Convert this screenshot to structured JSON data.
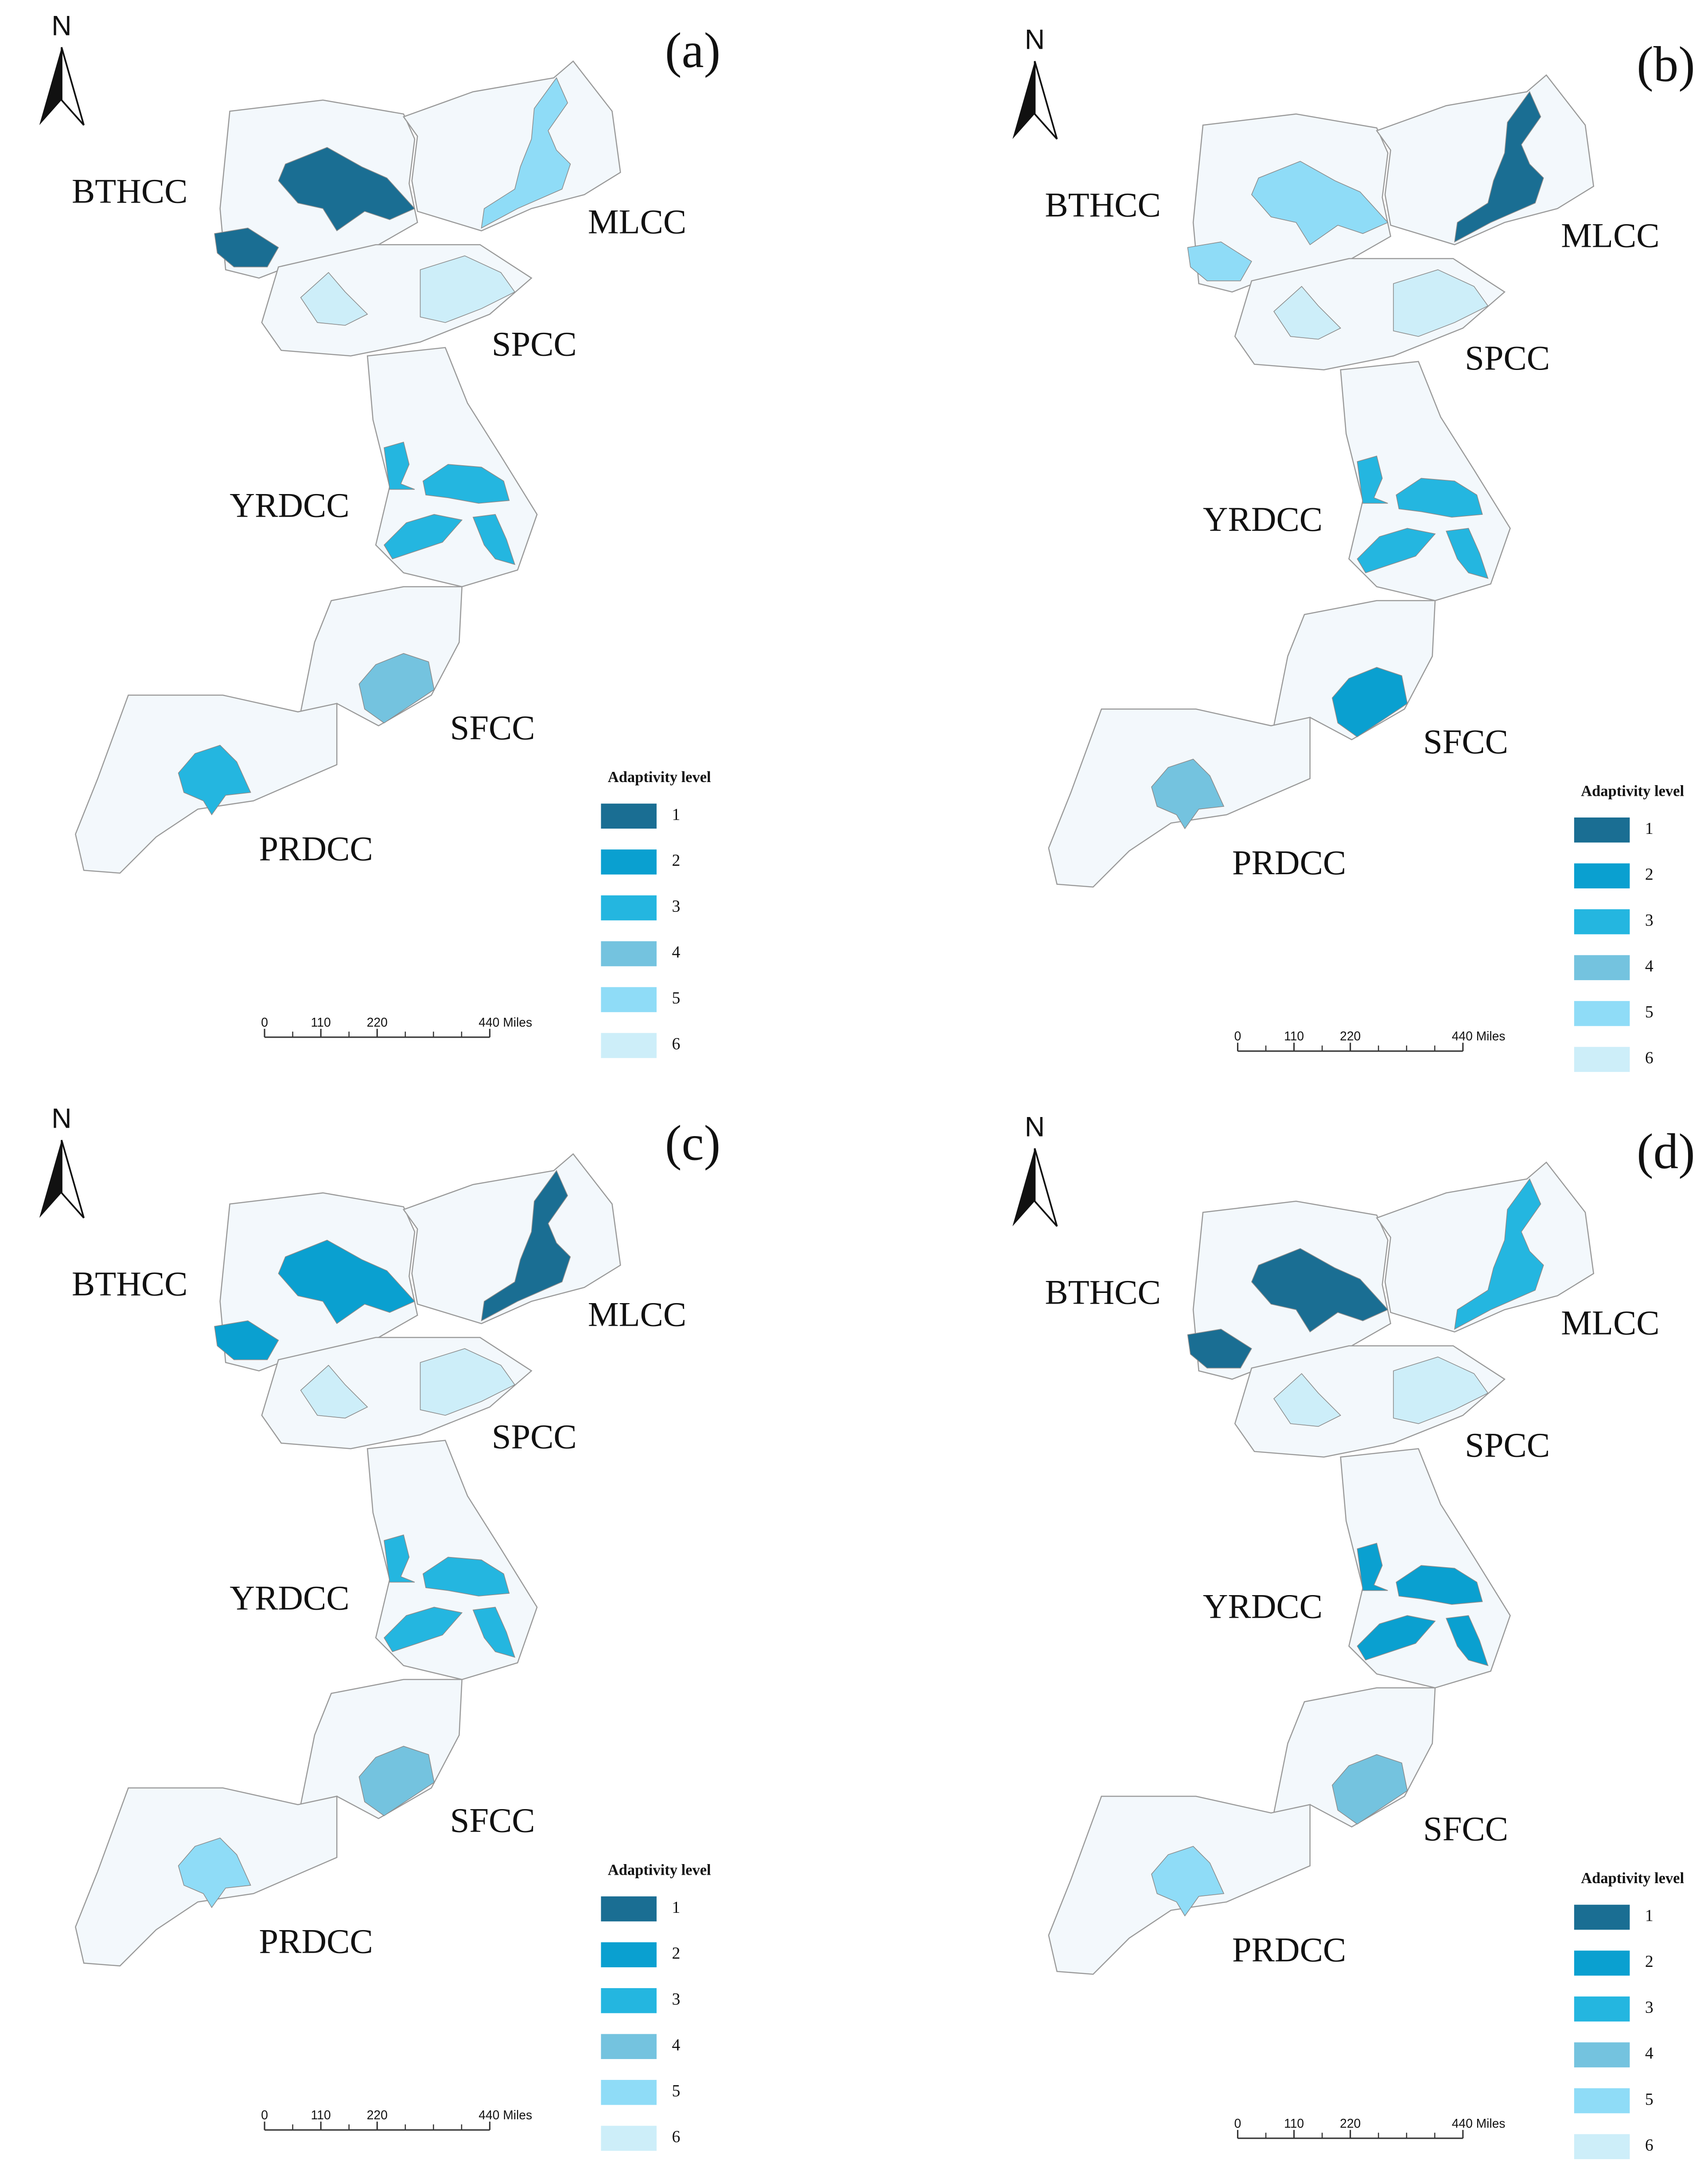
{
  "north": "N",
  "region_names": [
    "BTHCC",
    "MLCC",
    "SPCC",
    "YRDCC",
    "SFCC",
    "PRDCC"
  ],
  "legend": {
    "title": "Adaptivity level",
    "levels": [
      1,
      2,
      3,
      4,
      5,
      6
    ],
    "colors": [
      "#1a6e93",
      "#0aa0d0",
      "#24b6e0",
      "#74c3df",
      "#8fdcf7",
      "#cdeef9"
    ]
  },
  "scale_bar": {
    "ticks": [
      0,
      110,
      220,
      {
        "value": 440,
        "label": "440 Miles"
      }
    ],
    "range": [
      0,
      440
    ]
  },
  "panels": [
    {
      "label": "(a)",
      "area_levels": [
        1,
        1,
        5,
        6,
        6,
        3,
        3,
        3,
        3,
        4,
        3
      ]
    },
    {
      "label": "(b)",
      "area_levels": [
        5,
        5,
        1,
        6,
        6,
        3,
        3,
        3,
        3,
        2,
        4
      ]
    },
    {
      "label": "(c)",
      "area_levels": [
        2,
        2,
        1,
        6,
        6,
        3,
        3,
        3,
        3,
        4,
        5
      ]
    },
    {
      "label": "(d)",
      "area_levels": [
        1,
        1,
        3,
        6,
        6,
        2,
        2,
        2,
        2,
        4,
        5
      ]
    }
  ]
}
